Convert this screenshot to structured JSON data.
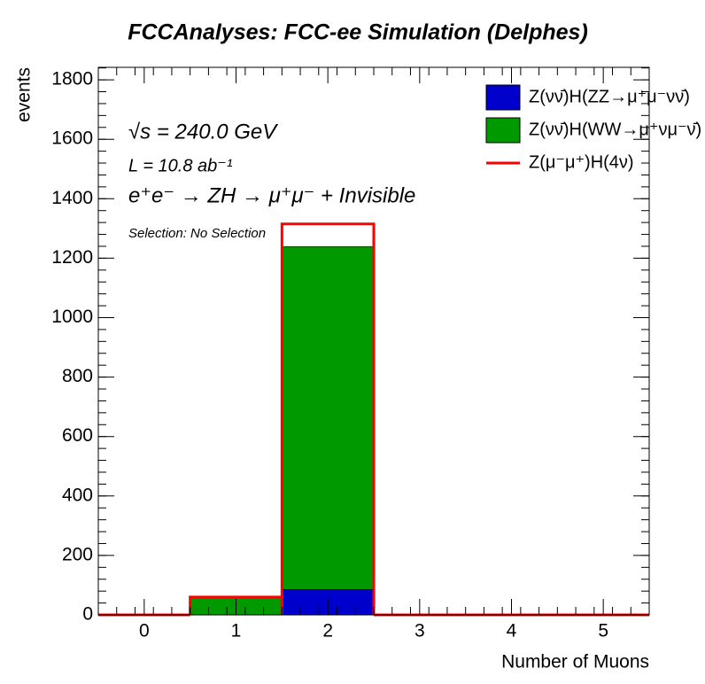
{
  "chart_data": {
    "type": "histogram",
    "title": "FCCAnalyses: FCC-ee Simulation (Delphes)",
    "x_label": "Number of Muons",
    "y_label": "events",
    "annotations": [
      "√s = 240.0 GeV",
      "L = 10.8 ab⁻¹",
      "e⁺e⁻ → ZH → μ⁺μ⁻ + Invisible",
      "Selection: No Selection"
    ],
    "bins": [
      -0.5,
      0.5,
      1.5,
      2.5,
      3.5,
      4.5,
      5.5
    ],
    "stacked": true,
    "series": [
      {
        "name": "Z(νν̄)H(ZZ→μ⁺μ⁻νν̄)",
        "color": "#0000cc",
        "style": "filled",
        "values": [
          0,
          0,
          85,
          0,
          0,
          0
        ]
      },
      {
        "name": "Z(νν̄)H(WW→μ⁺νμ⁻ν̄)",
        "color": "#009900",
        "style": "filled",
        "values": [
          0,
          58,
          1155,
          0,
          0,
          0
        ]
      },
      {
        "name": "Z(μ⁻μ⁺)H(4ν)",
        "color": "#ff0000",
        "style": "line",
        "values": [
          0,
          2,
          75,
          0,
          0,
          0
        ]
      }
    ],
    "xlim": [
      -0.5,
      5.5
    ],
    "xticks": [
      0,
      1,
      2,
      3,
      4,
      5
    ],
    "ylim": [
      0,
      1842
    ],
    "yticks": [
      0,
      200,
      400,
      600,
      800,
      1000,
      1200,
      1400,
      1600,
      1800
    ]
  }
}
